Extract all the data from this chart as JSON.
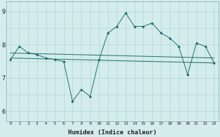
{
  "xlabel": "Humidex (Indice chaleur)",
  "xlim": [
    -0.5,
    23.5
  ],
  "ylim": [
    5.7,
    9.3
  ],
  "yticks": [
    6,
    7,
    8,
    9
  ],
  "xticks": [
    0,
    1,
    2,
    3,
    4,
    5,
    6,
    7,
    8,
    9,
    10,
    11,
    12,
    13,
    14,
    15,
    16,
    17,
    18,
    19,
    20,
    21,
    22,
    23
  ],
  "bg_color": "#d4ecec",
  "line_color": "#1a6b6b",
  "grid_color": "#afd4d4",
  "line_main": {
    "x": [
      0,
      1,
      2,
      3,
      4,
      5,
      6,
      7,
      8,
      9,
      10,
      11,
      12,
      13,
      14,
      15,
      16,
      17,
      18,
      19,
      20,
      21,
      22,
      23
    ],
    "y": [
      7.55,
      7.95,
      7.75,
      7.7,
      7.6,
      7.55,
      7.5,
      6.3,
      6.65,
      6.45,
      7.55,
      8.35,
      8.55,
      8.95,
      8.55,
      8.55,
      8.65,
      8.35,
      8.2,
      7.95,
      7.1,
      8.05,
      7.95,
      7.45
    ]
  },
  "line_flat": {
    "x": [
      0,
      23
    ],
    "y": [
      7.75,
      7.6
    ]
  },
  "line_trend": {
    "x": [
      0,
      23
    ],
    "y": [
      7.6,
      7.45
    ]
  }
}
